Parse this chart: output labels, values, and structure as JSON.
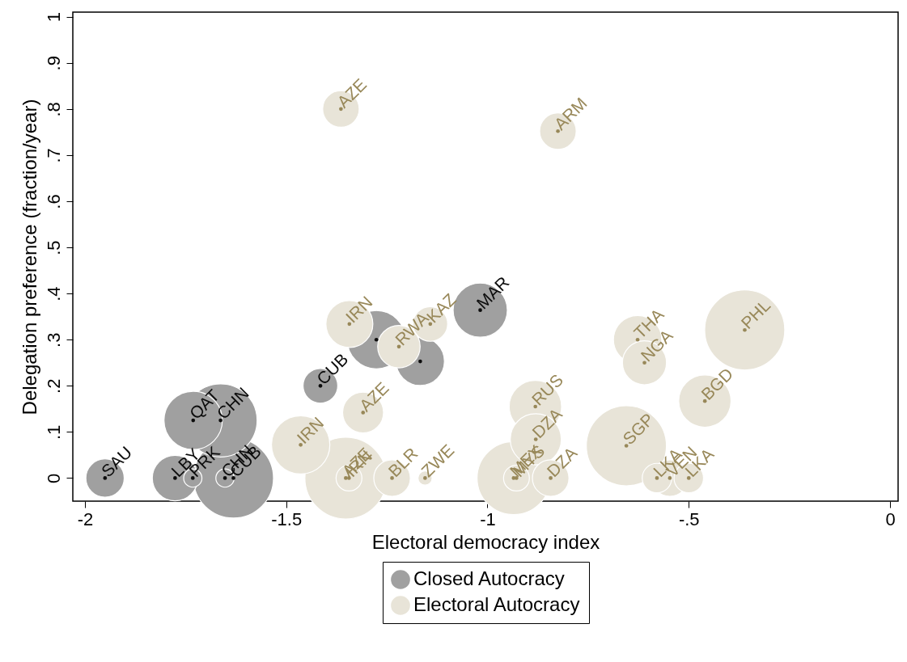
{
  "chart_data": {
    "type": "bubble",
    "xlabel": "Electoral democracy index",
    "ylabel": "Delegation preference (fraction/year)",
    "xlim": [
      -2.03,
      0.02
    ],
    "ylim": [
      -0.05,
      1.01
    ],
    "xticks": [
      -2,
      -1.5,
      -1,
      {
        "value": -0.5,
        "label": "-.5"
      },
      0
    ],
    "yticks": [
      0,
      {
        "value": 0.1,
        "label": ".1"
      },
      {
        "value": 0.2,
        "label": ".2"
      },
      {
        "value": 0.3,
        "label": ".3"
      },
      {
        "value": 0.4,
        "label": ".4"
      },
      {
        "value": 0.5,
        "label": ".5"
      },
      {
        "value": 0.6,
        "label": ".6"
      },
      {
        "value": 0.7,
        "label": ".7"
      },
      {
        "value": 0.8,
        "label": ".8"
      },
      {
        "value": 0.9,
        "label": ".9"
      },
      1
    ],
    "grid": false,
    "legend": "bottom",
    "marker": "circle",
    "series": [
      {
        "name": "Closed Autocracy",
        "color": "#a0a0a0",
        "x": [
          -1.95,
          -1.776,
          -1.732,
          -1.652,
          -1.631,
          -1.731,
          -1.663,
          -1.415,
          -1.276,
          -1.167,
          -1.018
        ],
        "values": [
          0,
          0,
          0,
          0,
          0,
          0.125,
          0.125,
          0.2,
          0.3,
          0.253,
          0.364
        ],
        "sizes": [
          0.22,
          0.31,
          0.05,
          0.05,
          0.96,
          0.51,
          0.8,
          0.18,
          0.51,
          0.35,
          0.44
        ],
        "value_labels": [
          "SAU",
          "LBY",
          "PRK",
          "CHN",
          "CUB",
          "QAT",
          "CHN",
          "CUB",
          null,
          null,
          "MAR"
        ]
      },
      {
        "name": "Electoral Autocracy",
        "color": "#e8e4d8",
        "x": [
          -1.364,
          -0.825,
          -1.343,
          -1.22,
          -1.142,
          -1.309,
          -1.464,
          -1.352,
          -1.344,
          -1.237,
          -1.155,
          -0.935,
          -0.928,
          -0.843,
          -0.88,
          -0.881,
          -0.655,
          -0.627,
          -0.61,
          -0.46,
          -0.361,
          -0.579,
          -0.547,
          -0.5
        ],
        "values": [
          0.8,
          0.752,
          0.334,
          0.285,
          0.334,
          0.142,
          0.072,
          0,
          0,
          0,
          0,
          0,
          0,
          0,
          0.084,
          0.155,
          0.07,
          0.3,
          0.25,
          0.167,
          0.321,
          0,
          0,
          0
        ],
        "sizes": [
          0.2,
          0.2,
          0.33,
          0.27,
          0.18,
          0.25,
          0.51,
          1,
          0.1,
          0.2,
          0.03,
          0.8,
          0.1,
          0.2,
          0.39,
          0.41,
          0.96,
          0.35,
          0.29,
          0.41,
          0.96,
          0.13,
          0.2,
          0.13
        ],
        "value_labels": [
          "AZE",
          "ARM",
          "IRN",
          "RWA",
          "KAZ",
          "AZE",
          "IRN",
          "AZE",
          "IRN",
          "BLR",
          "ZWE",
          "MEX",
          "MYS",
          "DZA",
          "DZA",
          "RUS",
          "SGP",
          "THA",
          "NGA",
          "BGD",
          "PHL",
          "LKA",
          "VEN",
          "LKA"
        ]
      }
    ]
  }
}
